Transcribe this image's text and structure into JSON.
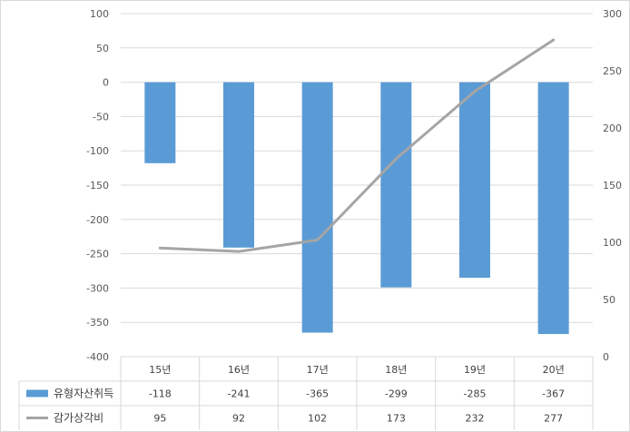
{
  "chart_data": {
    "type": "bar",
    "categories": [
      "15년",
      "16년",
      "17년",
      "18년",
      "19년",
      "20년"
    ],
    "series": [
      {
        "name": "유형자산취득",
        "type": "bar",
        "axis": "left",
        "color": "#5B9BD5",
        "values": [
          -118,
          -241,
          -365,
          -299,
          -285,
          -367
        ]
      },
      {
        "name": "감가상각비",
        "type": "line",
        "axis": "right",
        "color": "#A5A5A5",
        "values": [
          95,
          92,
          102,
          173,
          232,
          277
        ]
      }
    ],
    "y_left": {
      "min": -400,
      "max": 100,
      "step": 50,
      "tick_labels": [
        "100",
        "50",
        "0",
        "-50",
        "-100",
        "-150",
        "-200",
        "-250",
        "-300",
        "-350",
        "-400"
      ]
    },
    "y_right": {
      "min": 0,
      "max": 300,
      "step": 50,
      "tick_labels": [
        "300",
        "250",
        "200",
        "150",
        "100",
        "50",
        "0"
      ]
    },
    "grid": true,
    "legend": "data-table-bottom",
    "data_table": {
      "rows": [
        {
          "label": "유형자산취득",
          "cells": [
            "-118",
            "-241",
            "-365",
            "-299",
            "-285",
            "-367"
          ]
        },
        {
          "label": "감가상각비",
          "cells": [
            "95",
            "92",
            "102",
            "173",
            "232",
            "277"
          ]
        }
      ]
    }
  }
}
